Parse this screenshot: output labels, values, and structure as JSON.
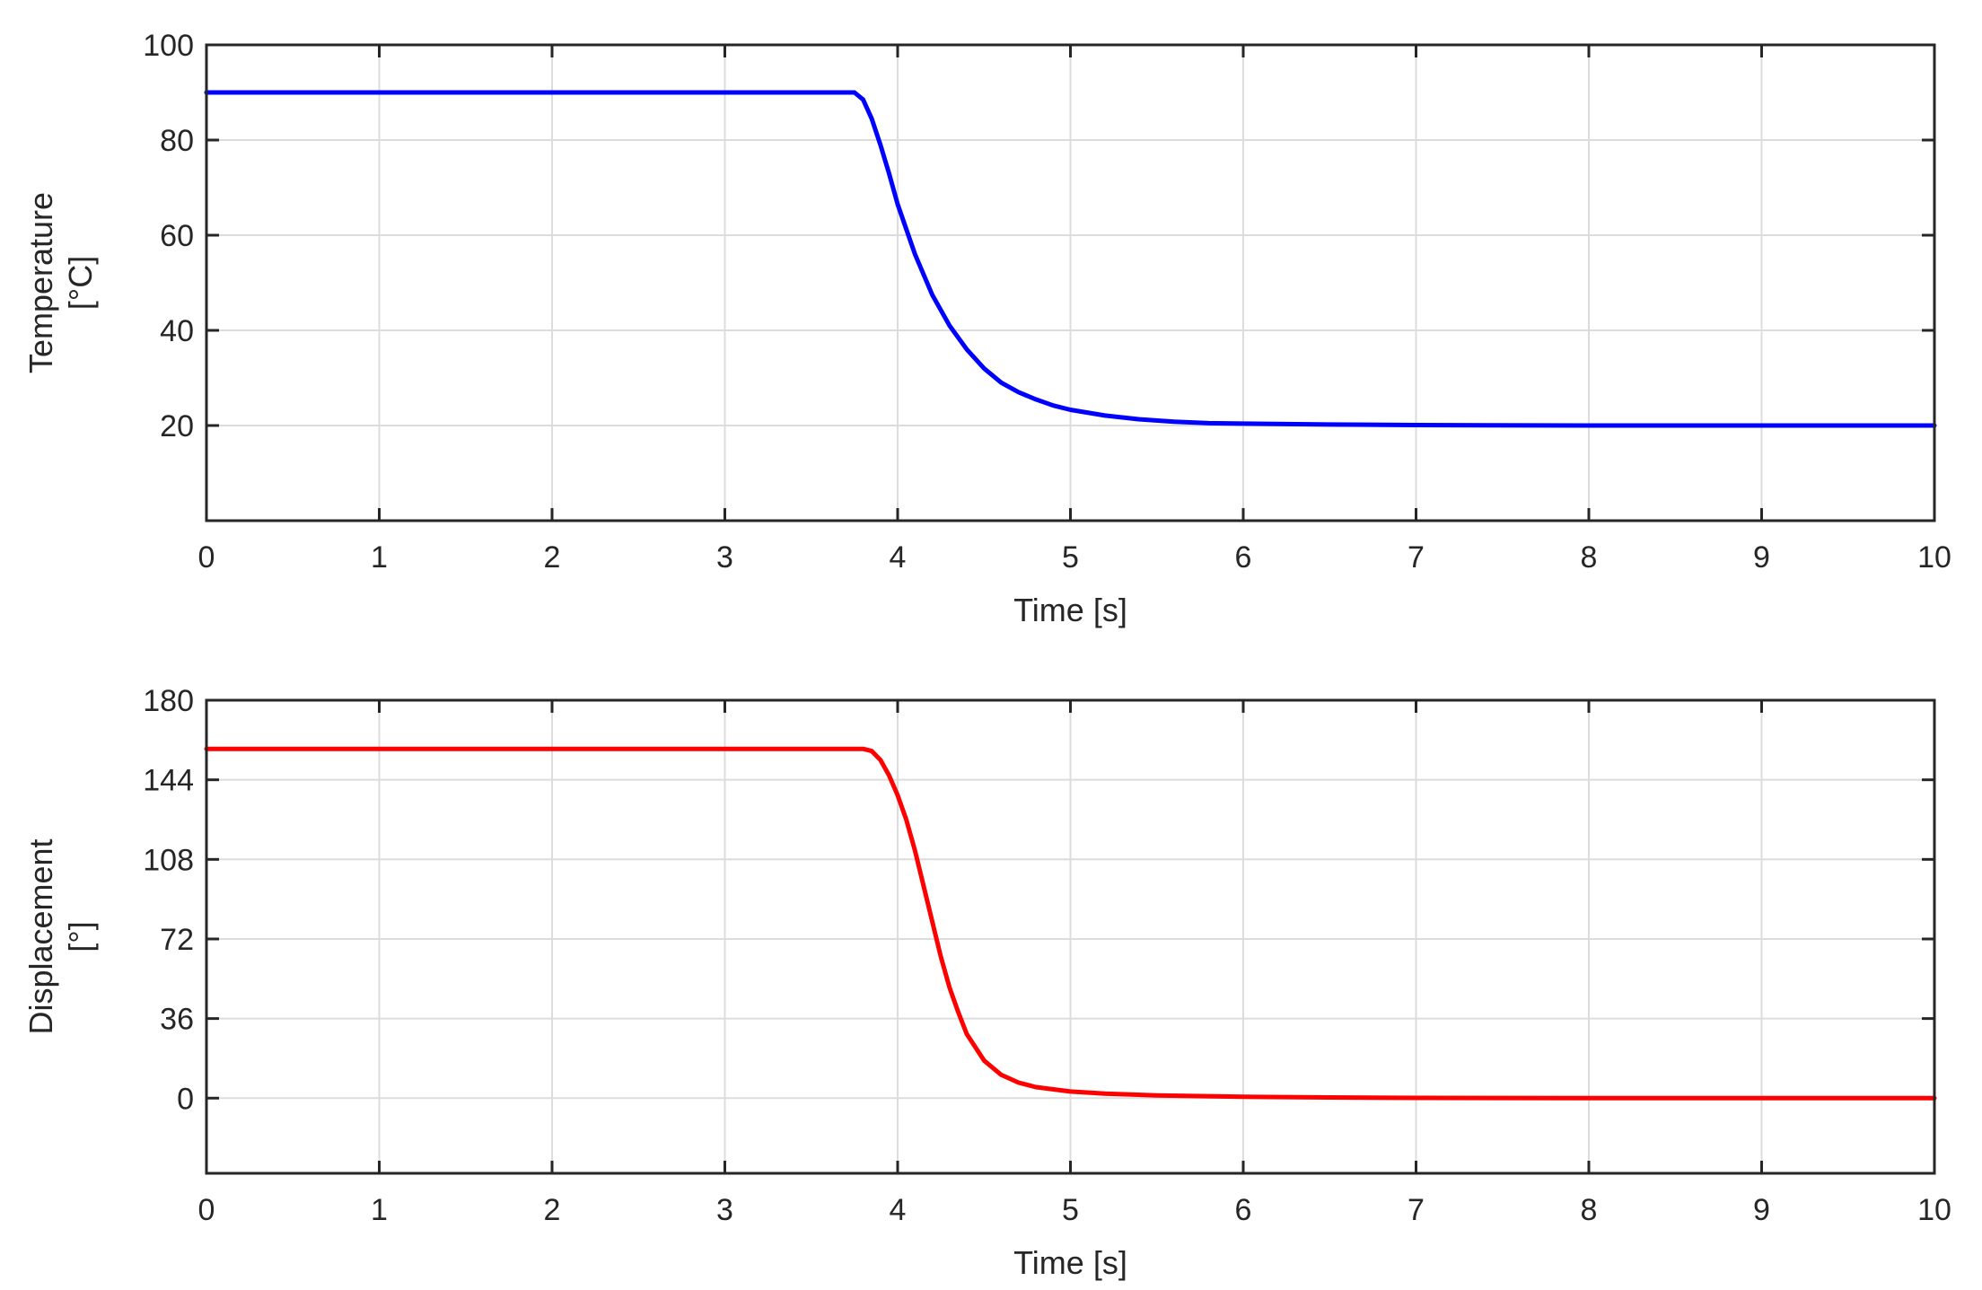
{
  "chart_data": [
    {
      "type": "line",
      "xlabel": "Time [s]",
      "ylabel_lines": [
        "Temperature",
        "[°C]"
      ],
      "xlim": [
        0,
        10
      ],
      "ylim": [
        0,
        100
      ],
      "xticks": [
        0,
        1,
        2,
        3,
        4,
        5,
        6,
        7,
        8,
        9,
        10
      ],
      "yticks": [
        20,
        40,
        60,
        80,
        100
      ],
      "grid": true,
      "series": [
        {
          "color": "#0000ff",
          "x": [
            0,
            1,
            2,
            3,
            3.5,
            3.75,
            3.8,
            3.85,
            3.9,
            3.95,
            4.0,
            4.1,
            4.2,
            4.3,
            4.4,
            4.5,
            4.6,
            4.7,
            4.8,
            4.9,
            5.0,
            5.2,
            5.4,
            5.6,
            5.8,
            6.0,
            6.5,
            7.0,
            8.0,
            9.0,
            10.0
          ],
          "y": [
            90,
            90,
            90,
            90,
            90,
            90,
            88.5,
            84.5,
            79,
            73,
            66.5,
            56,
            47.5,
            41,
            36,
            32,
            29,
            27,
            25.5,
            24.2,
            23.3,
            22.1,
            21.3,
            20.8,
            20.5,
            20.4,
            20.2,
            20.1,
            20.0,
            20.0,
            20.0
          ]
        }
      ]
    },
    {
      "type": "line",
      "xlabel": "Time [s]",
      "ylabel_lines": [
        "Displacement",
        "[°]"
      ],
      "xlim": [
        0,
        10
      ],
      "ylim": [
        -34,
        180
      ],
      "xticks": [
        0,
        1,
        2,
        3,
        4,
        5,
        6,
        7,
        8,
        9,
        10
      ],
      "yticks": [
        0,
        36,
        72,
        108,
        144,
        180
      ],
      "grid": true,
      "series": [
        {
          "color": "#ff0000",
          "x": [
            0,
            1,
            2,
            3,
            3.5,
            3.8,
            3.85,
            3.9,
            3.95,
            4.0,
            4.05,
            4.1,
            4.15,
            4.2,
            4.25,
            4.3,
            4.35,
            4.4,
            4.5,
            4.6,
            4.7,
            4.8,
            5.0,
            5.2,
            5.5,
            6.0,
            6.5,
            7.0,
            8.0,
            9.0,
            10.0
          ],
          "y": [
            158,
            158,
            158,
            158,
            158,
            158,
            157,
            153,
            146,
            137,
            126,
            112,
            96,
            80,
            64,
            50,
            39,
            29,
            17,
            10.5,
            7,
            5,
            3,
            2,
            1.2,
            0.6,
            0.3,
            0.1,
            0,
            0,
            0
          ]
        }
      ]
    }
  ]
}
